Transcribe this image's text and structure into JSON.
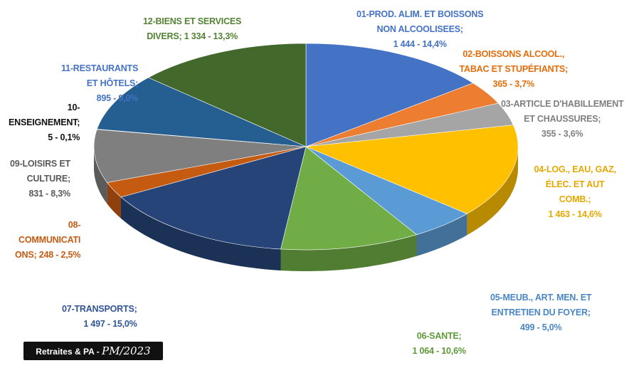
{
  "chart_data": {
    "type": "pie",
    "slices": [
      {
        "code": "01",
        "lines": [
          "01-PROD. ALIM. ET BOISSONS",
          "NON ALCOOLISEES;",
          "1 444 - 14,4%"
        ],
        "value": 1444,
        "percent": 14.4,
        "color": "#4472C4",
        "label_color": "#4472C4"
      },
      {
        "code": "02",
        "lines": [
          "02-BOISSONS ALCOOL.,",
          "TABAC ET STUPÉFIANTS;",
          "365 - 3,7%"
        ],
        "value": 365,
        "percent": 3.7,
        "color": "#ED7D31",
        "label_color": "#E46C0A"
      },
      {
        "code": "03",
        "lines": [
          "03-ARTICLE D'HABILLEMENT",
          "ET CHAUSSURES;",
          "355 - 3,6%"
        ],
        "value": 355,
        "percent": 3.6,
        "color": "#A5A5A5",
        "label_color": "#7F7F7F"
      },
      {
        "code": "04",
        "lines": [
          "04-LOG., EAU, GAZ,",
          "ÉLEC. ET AUT",
          "COMB.;",
          "1 463 - 14,6%"
        ],
        "value": 1463,
        "percent": 14.6,
        "color": "#FFC000",
        "label_color": "#E6A800"
      },
      {
        "code": "05",
        "lines": [
          "05-MEUB., ART. MEN. ET",
          "ENTRETIEN DU FOYER;",
          "499 - 5,0%"
        ],
        "value": 499,
        "percent": 5.0,
        "color": "#5B9BD5",
        "label_color": "#4A86C5"
      },
      {
        "code": "06",
        "lines": [
          "06-SANTE;",
          "1 064 - 10,6%"
        ],
        "value": 1064,
        "percent": 10.6,
        "color": "#70AD47",
        "label_color": "#5E9A38"
      },
      {
        "code": "07",
        "lines": [
          "07-TRANSPORTS;",
          "1 497 - 15,0%"
        ],
        "value": 1497,
        "percent": 15.0,
        "color": "#264478",
        "label_color": "#2F5597"
      },
      {
        "code": "08",
        "lines": [
          "08-",
          "COMMUNICATI",
          "ONS; 248 - 2,5%"
        ],
        "value": 248,
        "percent": 2.5,
        "color": "#C55A11",
        "label_color": "#C55A11"
      },
      {
        "code": "09",
        "lines": [
          "09-LOISIRS ET",
          "CULTURE;",
          "831 - 8,3%"
        ],
        "value": 831,
        "percent": 8.3,
        "color": "#7F7F7F",
        "label_color": "#595959"
      },
      {
        "code": "10",
        "lines": [
          "10-",
          "ENSEIGNEMENT;",
          "5 - 0,1%"
        ],
        "value": 5,
        "percent": 0.1,
        "color": "#997300",
        "label_color": "#111111"
      },
      {
        "code": "11",
        "lines": [
          "11-RESTAURANTS",
          "ET HÔTELS;",
          "895 - 9,0%"
        ],
        "value": 895,
        "percent": 9.0,
        "color": "#255E91",
        "label_color": "#4472C4"
      },
      {
        "code": "12",
        "lines": [
          "12-BIENS ET SERVICES",
          "DIVERS; 1 334 - 13,3%"
        ],
        "value": 1334,
        "percent": 13.3,
        "color": "#43682B",
        "label_color": "#548235"
      }
    ],
    "legend": "none",
    "style": "3d-pie"
  },
  "watermark": {
    "text": "Retraites & PA - ",
    "signature": "PM/2023"
  }
}
